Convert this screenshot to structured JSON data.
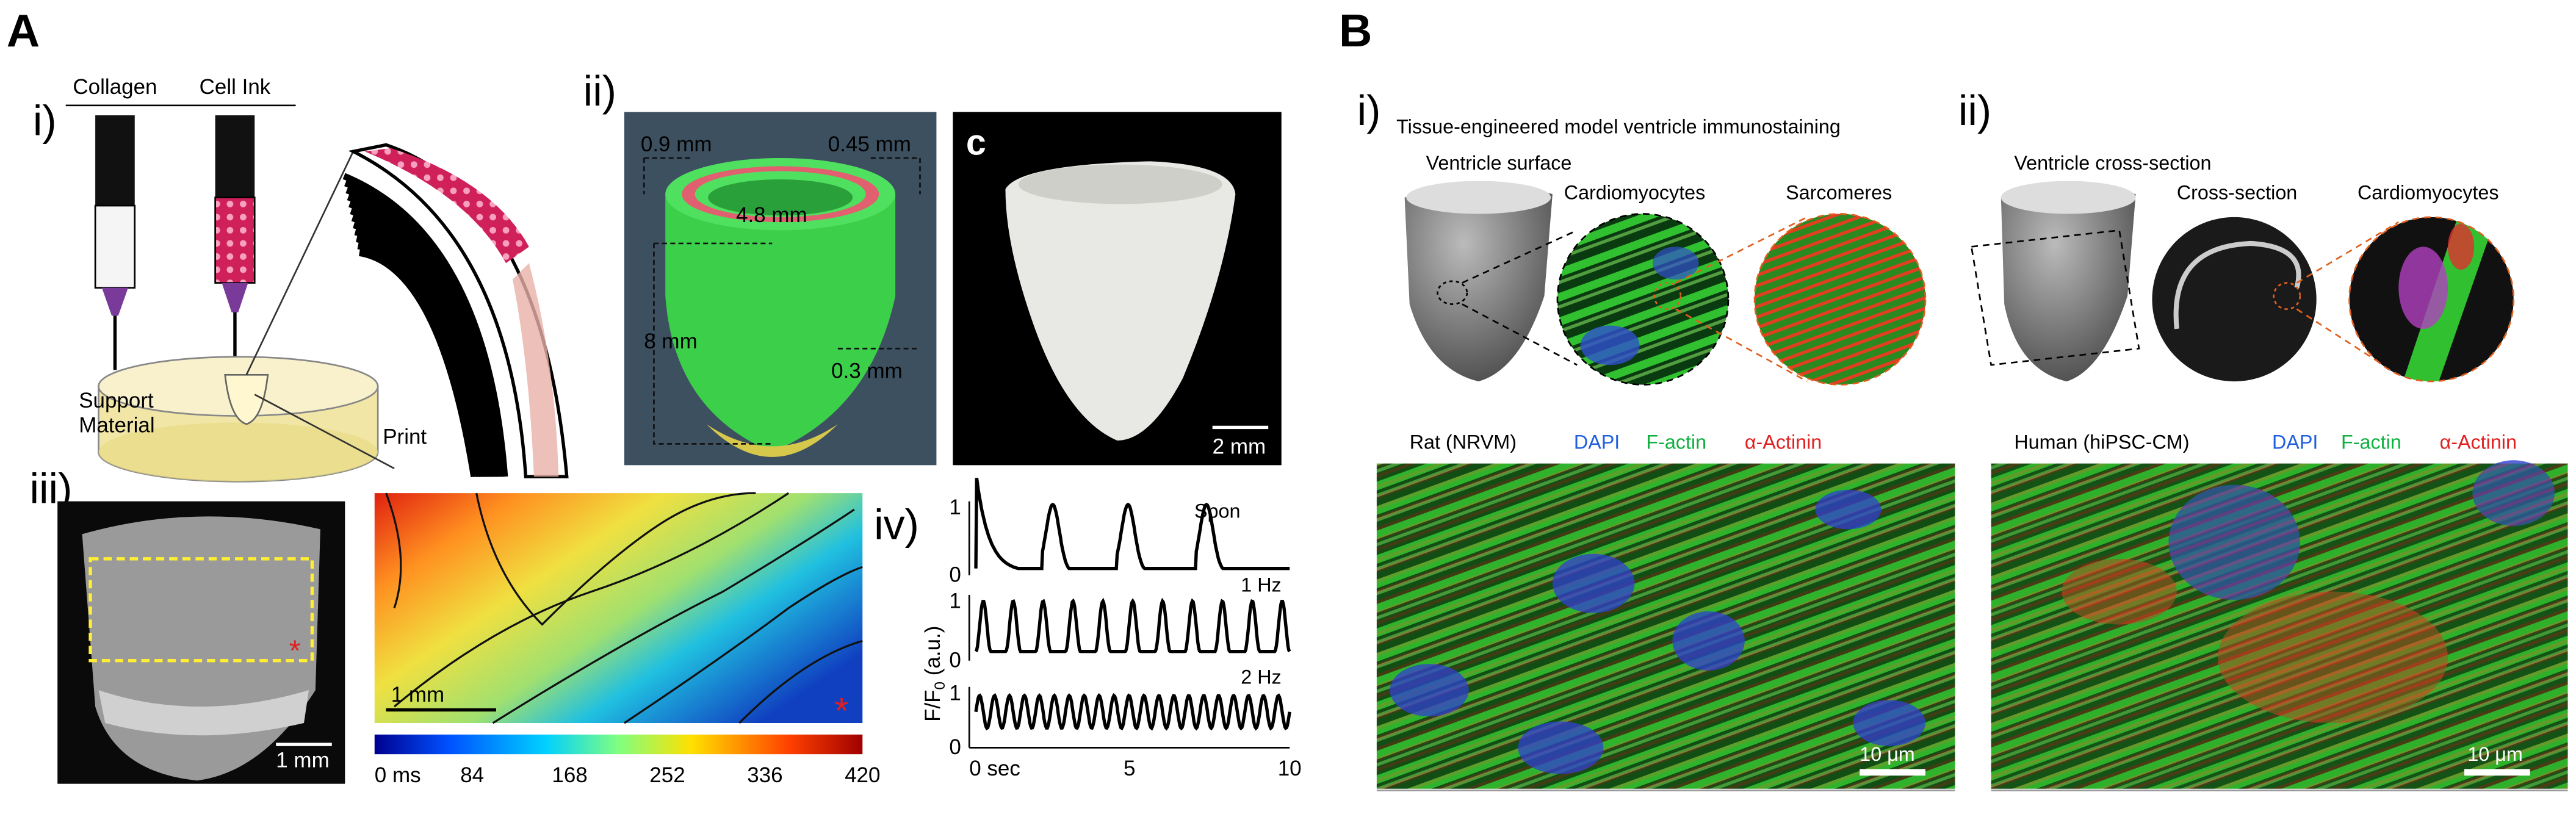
{
  "panel_a": {
    "label": "A",
    "i": {
      "label": "i)",
      "syringes": [
        "Collagen",
        "Cell Ink"
      ],
      "support": [
        "Support",
        "Material"
      ],
      "print": "Print"
    },
    "ii": {
      "label": "ii)",
      "dims": [
        "0.9 mm",
        "0.45 mm",
        "4.8 mm",
        "8 mm",
        "0.3 mm"
      ],
      "photo_label": "c",
      "scale": "2 mm"
    },
    "iii": {
      "label": "iii)",
      "photo_scale": "1 mm",
      "map_scale": "1 mm",
      "colorbar": [
        "0 ms",
        "84",
        "168",
        "252",
        "336",
        "420"
      ]
    },
    "iv": {
      "label": "iv)",
      "traces": [
        "Spon",
        "1 Hz",
        "2 Hz"
      ],
      "ylabel": "F/F",
      "ylabel_sub": "0",
      "ylabel_unit": " (a.u.)",
      "yticks": [
        "0",
        "1"
      ],
      "xticks": [
        "0 sec",
        "5",
        "10"
      ]
    }
  },
  "panel_b": {
    "label": "B",
    "i": {
      "label": "i)",
      "title": "Tissue-engineered model ventricle immunostaining",
      "labels": [
        "Ventricle surface",
        "Cardiomyocytes",
        "Sarcomeres"
      ]
    },
    "ii": {
      "label": "ii)",
      "labels": [
        "Ventricle cross-section",
        "Cross-section",
        "Cardiomyocytes"
      ]
    },
    "rat": {
      "title": "Rat (NRVM)",
      "stains": [
        "DAPI",
        "F-actin",
        "α-Actinin"
      ],
      "scale": "10 μm"
    },
    "human": {
      "title": "Human (hiPSC-CM)",
      "stains": [
        "DAPI",
        "F-actin",
        "α-Actinin"
      ],
      "scale": "10 μm"
    }
  }
}
